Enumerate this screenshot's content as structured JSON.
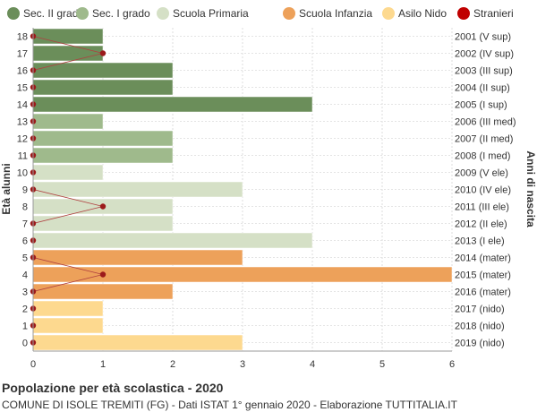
{
  "title": "Popolazione per età scolastica - 2020",
  "subtitle": "COMUNE DI ISOLE TREMITI (FG) - Dati ISTAT 1° gennaio 2020 - Elaborazione TUTTITALIA.IT",
  "chart_data": {
    "type": "bar",
    "orientation": "horizontal",
    "ylabel": "Età alunni",
    "ylabel_right": "Anni di nascita",
    "xlim": [
      0,
      6
    ],
    "x_ticks": [
      "0",
      "1",
      "2",
      "3",
      "4",
      "5",
      "6"
    ],
    "grid": true,
    "legend_position": "top",
    "legend": [
      {
        "name": "Sec. II grado",
        "color": "#6b8e5a"
      },
      {
        "name": "Sec. I grado",
        "color": "#9fba8c"
      },
      {
        "name": "Scuola Primaria",
        "color": "#d5e0c6"
      },
      {
        "name": "Scuola Infanzia",
        "color": "#eda15a"
      },
      {
        "name": "Asilo Nido",
        "color": "#fdd98f"
      },
      {
        "name": "Stranieri",
        "color": "#c00000"
      }
    ],
    "rows": [
      {
        "age": "18",
        "birth": "2001 (V sup)",
        "value": 1,
        "stranieri": 0,
        "group": 0
      },
      {
        "age": "17",
        "birth": "2002 (IV sup)",
        "value": 1,
        "stranieri": 1,
        "group": 0
      },
      {
        "age": "16",
        "birth": "2003 (III sup)",
        "value": 2,
        "stranieri": 0,
        "group": 0
      },
      {
        "age": "15",
        "birth": "2004 (II sup)",
        "value": 2,
        "stranieri": 0,
        "group": 0
      },
      {
        "age": "14",
        "birth": "2005 (I sup)",
        "value": 4,
        "stranieri": 0,
        "group": 0
      },
      {
        "age": "13",
        "birth": "2006 (III med)",
        "value": 1,
        "stranieri": 0,
        "group": 1
      },
      {
        "age": "12",
        "birth": "2007 (II med)",
        "value": 2,
        "stranieri": 0,
        "group": 1
      },
      {
        "age": "11",
        "birth": "2008 (I med)",
        "value": 2,
        "stranieri": 0,
        "group": 1
      },
      {
        "age": "10",
        "birth": "2009 (V ele)",
        "value": 1,
        "stranieri": 0,
        "group": 2
      },
      {
        "age": "9",
        "birth": "2010 (IV ele)",
        "value": 3,
        "stranieri": 0,
        "group": 2
      },
      {
        "age": "8",
        "birth": "2011 (III ele)",
        "value": 2,
        "stranieri": 1,
        "group": 2
      },
      {
        "age": "7",
        "birth": "2012 (II ele)",
        "value": 2,
        "stranieri": 0,
        "group": 2
      },
      {
        "age": "6",
        "birth": "2013 (I ele)",
        "value": 4,
        "stranieri": 0,
        "group": 2
      },
      {
        "age": "5",
        "birth": "2014 (mater)",
        "value": 3,
        "stranieri": 0,
        "group": 3
      },
      {
        "age": "4",
        "birth": "2015 (mater)",
        "value": 6,
        "stranieri": 1,
        "group": 3
      },
      {
        "age": "3",
        "birth": "2016 (mater)",
        "value": 2,
        "stranieri": 0,
        "group": 3
      },
      {
        "age": "2",
        "birth": "2017 (nido)",
        "value": 1,
        "stranieri": 0,
        "group": 4
      },
      {
        "age": "1",
        "birth": "2018 (nido)",
        "value": 1,
        "stranieri": 0,
        "group": 4
      },
      {
        "age": "0",
        "birth": "2019 (nido)",
        "value": 3,
        "stranieri": 0,
        "group": 4
      }
    ]
  }
}
